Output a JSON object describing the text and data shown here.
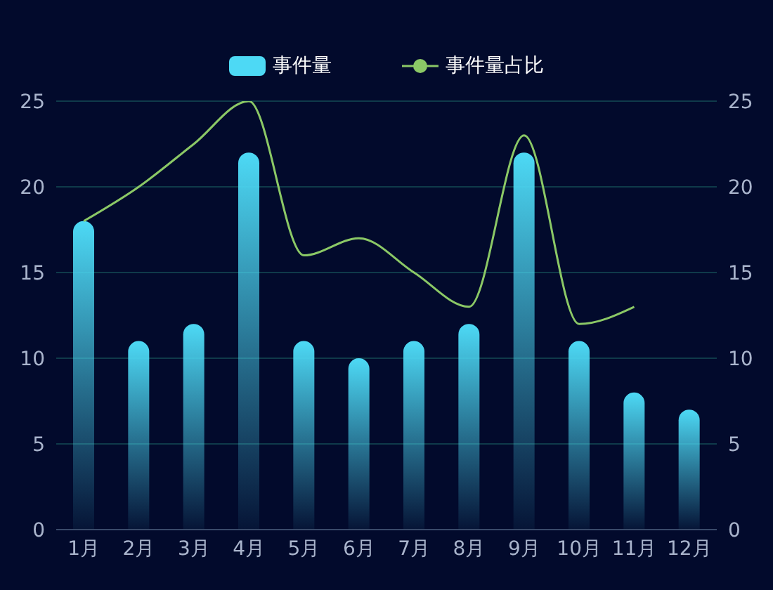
{
  "chart_data": {
    "type": "bar",
    "categories": [
      "1月",
      "2月",
      "3月",
      "4月",
      "5月",
      "6月",
      "7月",
      "8月",
      "9月",
      "10月",
      "11月",
      "12月"
    ],
    "series": [
      {
        "name": "事件量",
        "color": "#4dd9f5",
        "values": [
          18,
          11,
          12,
          22,
          11,
          10,
          11,
          12,
          22,
          11,
          8,
          7
        ]
      },
      {
        "name": "事件量占比",
        "type": "line",
        "axis": "y2",
        "color": "#8bc866",
        "values": [
          18,
          20,
          22.5,
          25,
          16,
          17,
          15,
          13,
          23,
          12,
          13,
          null
        ]
      }
    ],
    "ylim": [
      0,
      25
    ],
    "yticks": [
      0,
      5,
      10,
      15,
      20,
      25
    ],
    "y2lim": [
      0,
      25
    ],
    "y2ticks": [
      0,
      5,
      10,
      15,
      20,
      25
    ],
    "grid": "y",
    "legend": "top"
  }
}
